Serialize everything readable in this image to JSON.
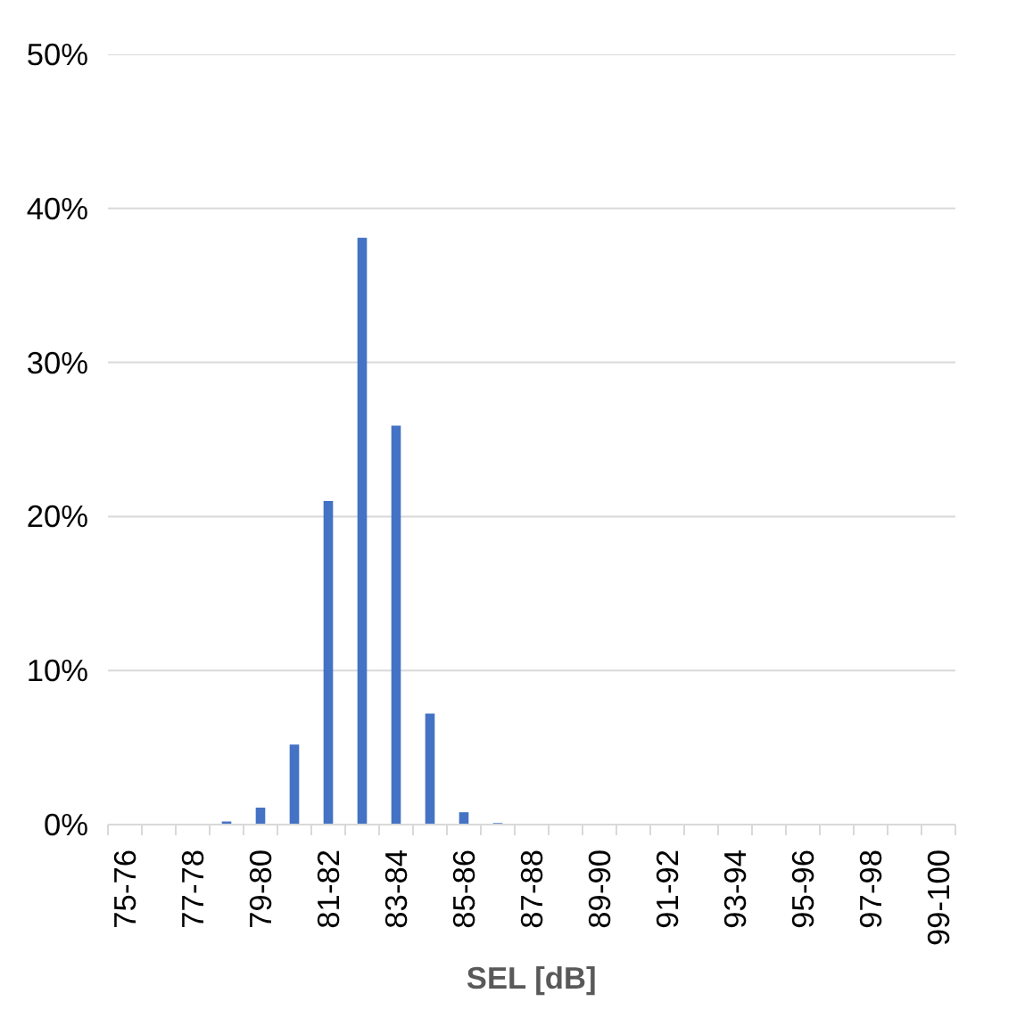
{
  "chart_data": {
    "type": "bar",
    "xlabel": "SEL [dB]",
    "categories": [
      "75-76",
      null,
      "77-78",
      null,
      "79-80",
      null,
      "81-82",
      null,
      "83-84",
      null,
      "85-86",
      null,
      "87-88",
      null,
      "89-90",
      null,
      "91-92",
      null,
      "93-94",
      null,
      "95-96",
      null,
      "97-98",
      null,
      "99-100"
    ],
    "values": [
      0,
      0,
      0,
      0.2,
      1.1,
      5.2,
      21,
      38.1,
      25.9,
      7.2,
      0.8,
      0.1,
      0,
      0,
      0,
      0,
      0,
      0,
      0,
      0,
      0,
      0,
      0,
      0,
      0
    ],
    "color": "#4472c4",
    "ylim": [
      0,
      50
    ],
    "yticks": [
      {
        "value": 0,
        "label": "0%"
      },
      {
        "value": 10,
        "label": "10%"
      },
      {
        "value": 20,
        "label": "20%"
      },
      {
        "value": 30,
        "label": "30%"
      },
      {
        "value": 40,
        "label": "40%"
      },
      {
        "value": 50,
        "label": "50%"
      }
    ],
    "grid": "y"
  }
}
